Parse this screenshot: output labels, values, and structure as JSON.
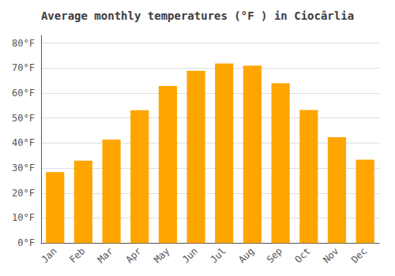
{
  "chart_data": {
    "type": "bar",
    "title": "Average monthly temperatures (°F ) in Ciocârlia",
    "categories": [
      "Jan",
      "Feb",
      "Mar",
      "Apr",
      "May",
      "Jun",
      "Jul",
      "Aug",
      "Sep",
      "Oct",
      "Nov",
      "Dec"
    ],
    "values": [
      28.4,
      32.9,
      41.4,
      53.1,
      62.8,
      68.9,
      71.8,
      70.9,
      63.9,
      53.2,
      42.3,
      33.3
    ],
    "color": "#FFA500",
    "ylim": [
      0,
      83
    ],
    "yticks": [
      {
        "value": 0,
        "label": "0°F"
      },
      {
        "value": 10,
        "label": "10°F"
      },
      {
        "value": 20,
        "label": "20°F"
      },
      {
        "value": 30,
        "label": "30°F"
      },
      {
        "value": 40,
        "label": "40°F"
      },
      {
        "value": 50,
        "label": "50°F"
      },
      {
        "value": 60,
        "label": "60°F"
      },
      {
        "value": 70,
        "label": "70°F"
      },
      {
        "value": 80,
        "label": "80°F"
      }
    ],
    "grid": true
  }
}
